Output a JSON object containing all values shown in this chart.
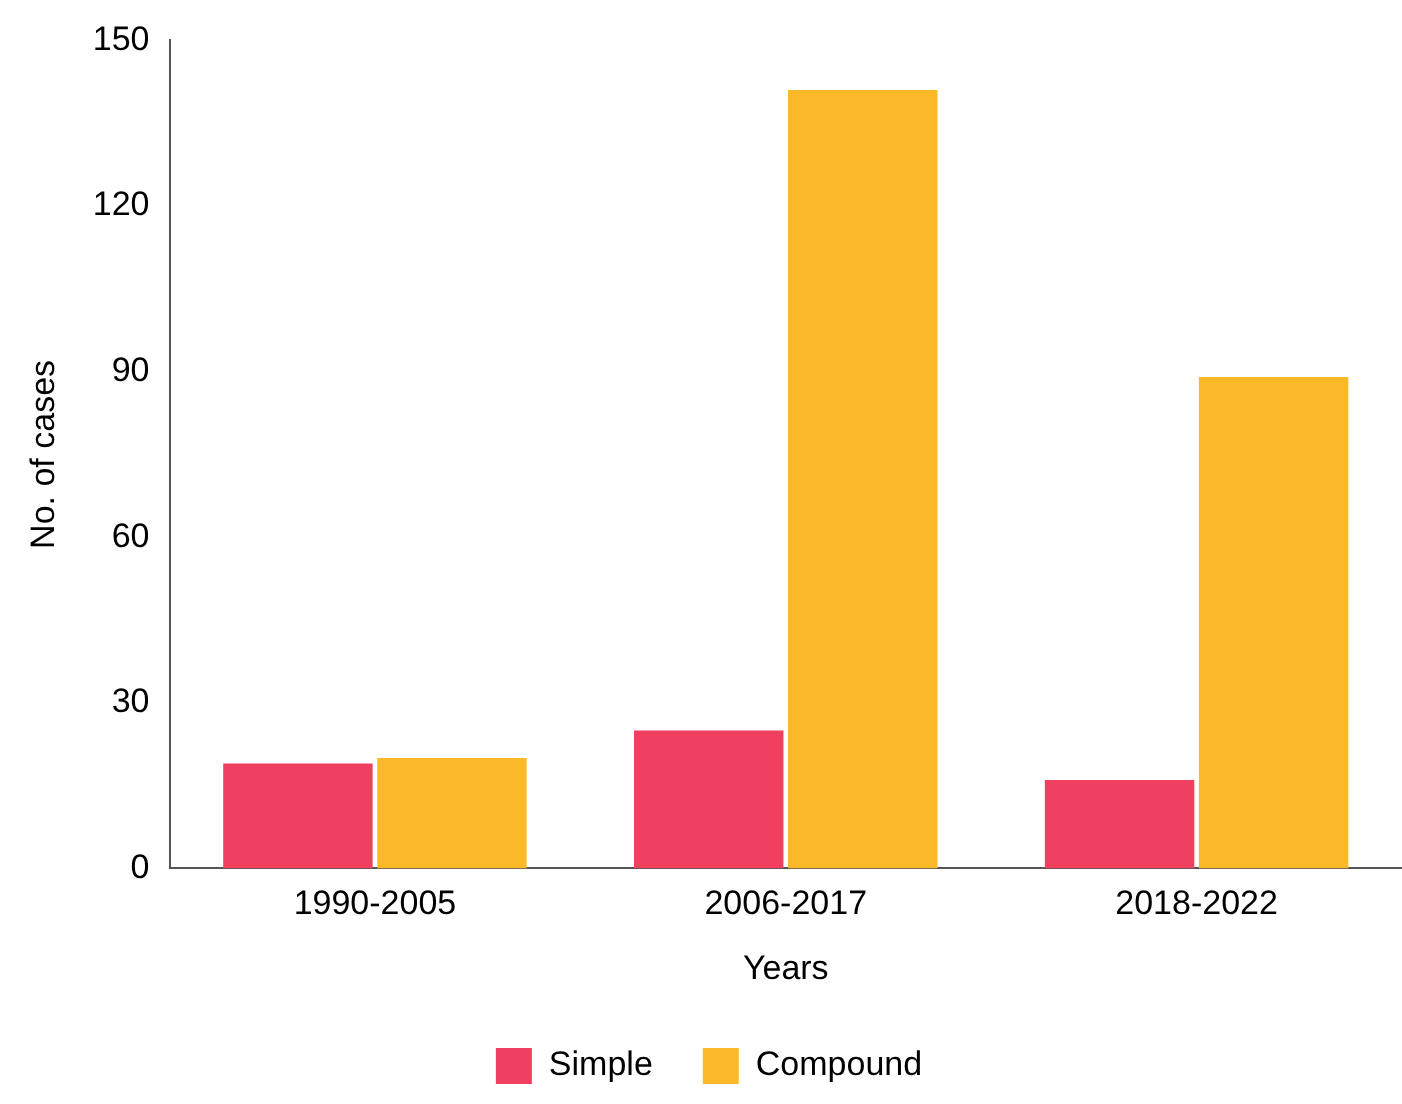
{
  "chart_data": {
    "type": "bar",
    "xlabel": "Years",
    "ylabel": "No. of cases",
    "categories": [
      "1990-2005",
      "2006-2017",
      "2018-2022"
    ],
    "series": [
      {
        "name": "Simple",
        "color": "#f03f5f",
        "values": [
          19,
          25,
          16
        ]
      },
      {
        "name": "Compound",
        "color": "#fbb829",
        "values": [
          20,
          141,
          89
        ]
      }
    ],
    "ylim": [
      0,
      150
    ],
    "yticks": [
      0,
      30,
      60,
      90,
      120,
      150
    ],
    "grid": false,
    "legend": "bottom"
  }
}
